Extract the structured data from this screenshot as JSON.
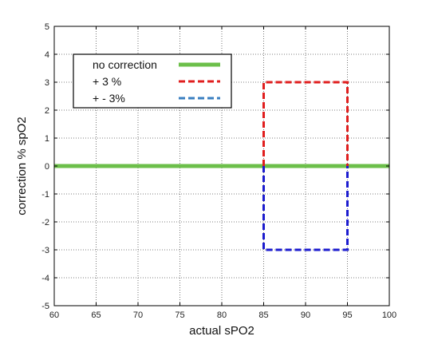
{
  "chart_data": {
    "type": "line",
    "title": "",
    "xlabel": "actual  sPO2",
    "ylabel": "correction  % spO2",
    "xlim": [
      60,
      100
    ],
    "ylim": [
      -5,
      5
    ],
    "xticks": [
      60,
      65,
      70,
      75,
      80,
      85,
      90,
      95,
      100
    ],
    "yticks": [
      -5,
      -4,
      -3,
      -2,
      -1,
      0,
      1,
      2,
      3,
      4,
      5
    ],
    "xtick_labels": [
      "60",
      "65",
      "70",
      "75",
      "80",
      "85",
      "90",
      "95",
      "100"
    ],
    "ytick_labels": [
      "-5",
      "-4",
      "-3",
      "-2",
      "-1",
      "0",
      "1",
      "2",
      "3",
      "4",
      "5"
    ],
    "grid": true,
    "grid_style": "dotted",
    "legend_position": "top-left",
    "series": [
      {
        "name": "no correction",
        "color": "#6cbf4a",
        "style": "solid",
        "x": [
          60,
          100
        ],
        "y": [
          0,
          0
        ]
      },
      {
        "name": "+   3 %",
        "color": "#e01e1e",
        "style": "dashed",
        "x": [
          85,
          85,
          95,
          95
        ],
        "y": [
          0,
          3,
          3,
          0
        ]
      },
      {
        "name": "+ - 3%",
        "color": "#1c1ccf",
        "legend_color": "#3a7fc0",
        "style": "dashed",
        "x": [
          85,
          85,
          95,
          95
        ],
        "y": [
          0,
          -3,
          -3,
          0
        ]
      }
    ]
  }
}
